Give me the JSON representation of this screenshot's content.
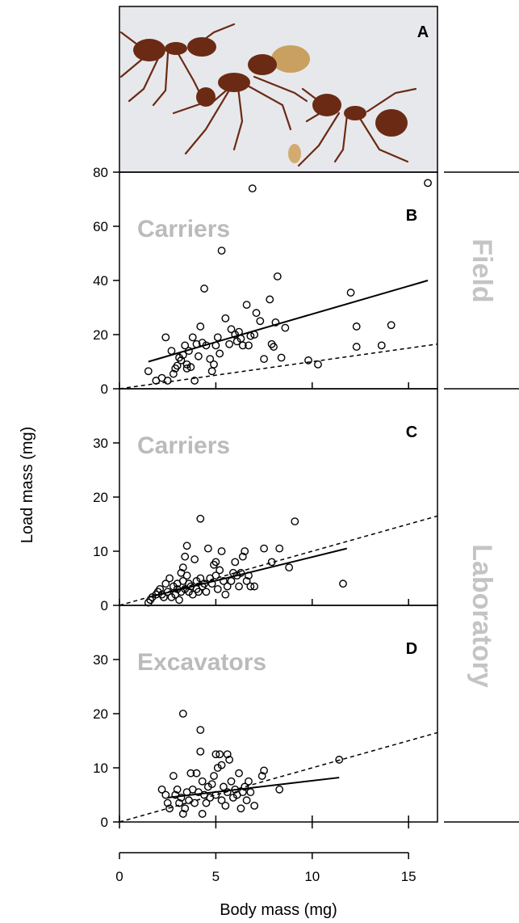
{
  "figure": {
    "ylabel": "Load mass (mg)",
    "xlabel": "Body mass (mg)",
    "group_labels": [
      "Field",
      "Laboratory"
    ],
    "photo_letter": "A",
    "photo_alt": "Photograph of leaf-cutting ants carrying a soil pellet"
  },
  "colors": {
    "axis": "#000000",
    "panel_title": "#bbbbbb",
    "group_label": "#c4c4c4",
    "photo_bg": "#e6e8ec",
    "ant": "#6b2a14"
  },
  "chart_data": [
    {
      "type": "scatter",
      "panel": "B",
      "title": "Carriers",
      "xlim": [
        0,
        16.5
      ],
      "ylim": [
        0,
        80
      ],
      "yticks": [
        0,
        20,
        40,
        60,
        80
      ],
      "xticks": [
        0,
        5,
        10,
        15
      ],
      "regression": [
        [
          1.5,
          10
        ],
        [
          16,
          40
        ]
      ],
      "reference": [
        [
          0,
          0
        ],
        [
          16.5,
          16.5
        ]
      ],
      "points": [
        [
          1.5,
          6.5
        ],
        [
          1.9,
          3
        ],
        [
          2.2,
          4
        ],
        [
          2.4,
          19
        ],
        [
          2.5,
          3
        ],
        [
          2.7,
          14
        ],
        [
          2.8,
          5.5
        ],
        [
          2.9,
          7.5
        ],
        [
          3.0,
          8.5
        ],
        [
          3.1,
          11.5
        ],
        [
          3.2,
          10.5
        ],
        [
          3.3,
          12.5
        ],
        [
          3.4,
          16
        ],
        [
          3.5,
          9
        ],
        [
          3.5,
          7.5
        ],
        [
          3.6,
          14
        ],
        [
          3.7,
          8
        ],
        [
          3.8,
          19
        ],
        [
          3.9,
          3
        ],
        [
          4.0,
          16.5
        ],
        [
          4.1,
          12
        ],
        [
          4.2,
          23
        ],
        [
          4.3,
          17
        ],
        [
          4.4,
          37
        ],
        [
          4.5,
          16
        ],
        [
          4.7,
          11
        ],
        [
          4.8,
          6.5
        ],
        [
          4.9,
          9
        ],
        [
          5.0,
          16
        ],
        [
          5.1,
          19
        ],
        [
          5.2,
          13
        ],
        [
          5.3,
          51
        ],
        [
          5.5,
          26
        ],
        [
          5.7,
          16.5
        ],
        [
          5.8,
          22
        ],
        [
          6.0,
          20
        ],
        [
          6.1,
          17.5
        ],
        [
          6.2,
          21
        ],
        [
          6.3,
          18.5
        ],
        [
          6.4,
          16
        ],
        [
          6.6,
          31
        ],
        [
          6.7,
          16
        ],
        [
          6.8,
          19.5
        ],
        [
          6.9,
          74
        ],
        [
          7.0,
          20
        ],
        [
          7.1,
          28
        ],
        [
          7.3,
          25
        ],
        [
          7.5,
          11
        ],
        [
          7.8,
          33
        ],
        [
          7.9,
          16.5
        ],
        [
          8.0,
          15.5
        ],
        [
          8.1,
          24.5
        ],
        [
          8.2,
          41.5
        ],
        [
          8.4,
          11.5
        ],
        [
          8.6,
          22.5
        ],
        [
          9.8,
          10.5
        ],
        [
          10.3,
          9
        ],
        [
          12.0,
          35.5
        ],
        [
          12.3,
          23
        ],
        [
          12.3,
          15.5
        ],
        [
          13.6,
          16
        ],
        [
          14.1,
          23.5
        ],
        [
          16.0,
          76
        ]
      ]
    },
    {
      "type": "scatter",
      "panel": "C",
      "title": "Carriers",
      "xlim": [
        0,
        16.5
      ],
      "ylim": [
        0,
        40
      ],
      "yticks": [
        0,
        10,
        20,
        30
      ],
      "xticks": [
        0,
        5,
        10,
        15
      ],
      "regression": [
        [
          1.5,
          1.5
        ],
        [
          11.8,
          10.5
        ]
      ],
      "reference": [
        [
          0,
          0
        ],
        [
          16.5,
          16.5
        ]
      ],
      "points": [
        [
          1.5,
          0.5
        ],
        [
          1.6,
          1
        ],
        [
          1.7,
          1.5
        ],
        [
          1.9,
          2
        ],
        [
          2.0,
          2.5
        ],
        [
          2.1,
          3
        ],
        [
          2.2,
          2
        ],
        [
          2.3,
          1.5
        ],
        [
          2.4,
          4
        ],
        [
          2.5,
          2.5
        ],
        [
          2.6,
          5
        ],
        [
          2.7,
          1.5
        ],
        [
          2.8,
          3.5
        ],
        [
          2.9,
          2
        ],
        [
          3.0,
          4
        ],
        [
          3.0,
          3
        ],
        [
          3.1,
          1
        ],
        [
          3.2,
          2.5
        ],
        [
          3.2,
          6
        ],
        [
          3.3,
          4.5
        ],
        [
          3.3,
          7
        ],
        [
          3.4,
          3
        ],
        [
          3.4,
          9
        ],
        [
          3.5,
          5.5
        ],
        [
          3.5,
          11
        ],
        [
          3.6,
          2.5
        ],
        [
          3.6,
          4
        ],
        [
          3.7,
          3.5
        ],
        [
          3.8,
          2
        ],
        [
          3.9,
          8.5
        ],
        [
          4.0,
          4.5
        ],
        [
          4.0,
          3
        ],
        [
          4.1,
          2.5
        ],
        [
          4.2,
          5
        ],
        [
          4.2,
          16
        ],
        [
          4.3,
          3.5
        ],
        [
          4.4,
          4
        ],
        [
          4.5,
          2.5
        ],
        [
          4.6,
          10.5
        ],
        [
          4.7,
          5
        ],
        [
          4.8,
          4
        ],
        [
          4.9,
          7.5
        ],
        [
          5.0,
          8
        ],
        [
          5.0,
          5.5
        ],
        [
          5.1,
          3
        ],
        [
          5.2,
          6.5
        ],
        [
          5.3,
          10
        ],
        [
          5.4,
          4.5
        ],
        [
          5.5,
          2
        ],
        [
          5.6,
          3.5
        ],
        [
          5.8,
          4.5
        ],
        [
          5.9,
          6
        ],
        [
          6.0,
          8
        ],
        [
          6.1,
          5.5
        ],
        [
          6.2,
          3.5
        ],
        [
          6.3,
          6
        ],
        [
          6.4,
          9
        ],
        [
          6.5,
          10
        ],
        [
          6.6,
          4.5
        ],
        [
          6.7,
          5.5
        ],
        [
          6.8,
          3.5
        ],
        [
          7.0,
          3.5
        ],
        [
          7.5,
          10.5
        ],
        [
          7.9,
          8
        ],
        [
          8.3,
          10.5
        ],
        [
          8.8,
          7
        ],
        [
          9.1,
          15.5
        ],
        [
          11.6,
          4
        ]
      ]
    },
    {
      "type": "scatter",
      "panel": "D",
      "title": "Excavators",
      "xlim": [
        0,
        16.5
      ],
      "ylim": [
        0,
        40
      ],
      "yticks": [
        0,
        10,
        20,
        30
      ],
      "xticks": [
        0,
        5,
        10,
        15
      ],
      "regression": [
        [
          2.5,
          4.5
        ],
        [
          11.4,
          8.2
        ]
      ],
      "reference": [
        [
          0,
          0
        ],
        [
          16.5,
          16.5
        ]
      ],
      "points": [
        [
          2.2,
          6
        ],
        [
          2.4,
          5
        ],
        [
          2.5,
          3.5
        ],
        [
          2.6,
          2.5
        ],
        [
          2.8,
          8.5
        ],
        [
          2.9,
          5
        ],
        [
          3.0,
          6
        ],
        [
          3.1,
          3.5
        ],
        [
          3.2,
          4.5
        ],
        [
          3.3,
          1.5
        ],
        [
          3.3,
          20
        ],
        [
          3.4,
          2.5
        ],
        [
          3.5,
          5.5
        ],
        [
          3.6,
          4
        ],
        [
          3.7,
          9
        ],
        [
          3.8,
          6
        ],
        [
          3.9,
          3.5
        ],
        [
          4.0,
          9
        ],
        [
          4.1,
          5.5
        ],
        [
          4.2,
          17
        ],
        [
          4.2,
          13
        ],
        [
          4.3,
          1.5
        ],
        [
          4.3,
          7.5
        ],
        [
          4.4,
          5
        ],
        [
          4.5,
          3.5
        ],
        [
          4.6,
          6.5
        ],
        [
          4.7,
          4.5
        ],
        [
          4.8,
          7
        ],
        [
          4.9,
          8.5
        ],
        [
          5.0,
          5
        ],
        [
          5.0,
          12.5
        ],
        [
          5.1,
          10
        ],
        [
          5.2,
          12.5
        ],
        [
          5.3,
          10.5
        ],
        [
          5.3,
          4
        ],
        [
          5.4,
          6.5
        ],
        [
          5.5,
          3
        ],
        [
          5.6,
          12.5
        ],
        [
          5.6,
          5.5
        ],
        [
          5.7,
          11.5
        ],
        [
          5.8,
          7.5
        ],
        [
          5.9,
          4.5
        ],
        [
          6.0,
          6
        ],
        [
          6.1,
          5
        ],
        [
          6.2,
          9
        ],
        [
          6.3,
          2.5
        ],
        [
          6.4,
          5.5
        ],
        [
          6.5,
          6.5
        ],
        [
          6.6,
          4
        ],
        [
          6.7,
          7.5
        ],
        [
          6.8,
          5.5
        ],
        [
          7.0,
          3
        ],
        [
          7.4,
          8.5
        ],
        [
          7.5,
          9.5
        ],
        [
          8.3,
          6
        ],
        [
          11.4,
          11.5
        ]
      ]
    }
  ]
}
